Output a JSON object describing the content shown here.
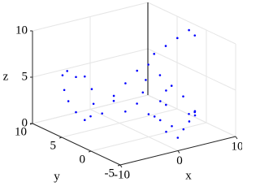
{
  "chart_data": {
    "type": "scatter3d",
    "xlabel": "x",
    "ylabel": "y",
    "zlabel": "z",
    "xlim": [
      -10,
      10
    ],
    "ylim": [
      -5,
      10
    ],
    "zlim": [
      0,
      10
    ],
    "xticks": [
      -10,
      0,
      10
    ],
    "yticks": [
      -5,
      0,
      5,
      10
    ],
    "zticks": [
      0,
      5,
      10
    ],
    "grid": true,
    "series": [
      {
        "color": "#0000ff",
        "x": [
          -5,
          -5,
          -5,
          -5,
          -5,
          -5,
          -5,
          -5,
          -5,
          -5,
          -5,
          -3,
          -1,
          0,
          0,
          0,
          -1,
          -2,
          -3,
          -2,
          1,
          2,
          3,
          4,
          5,
          6,
          7,
          8,
          9,
          9,
          7,
          6,
          5,
          4,
          5,
          6,
          7,
          8,
          8.5,
          3,
          2,
          1,
          0,
          1,
          2
        ],
        "y": [
          9.5,
          9.8,
          9,
          7.5,
          6,
          4.8,
          4.5,
          5,
          6,
          7.5,
          8.8,
          5,
          3,
          2,
          1,
          0.5,
          1,
          2,
          3,
          4,
          1,
          0,
          -1,
          -2,
          -2,
          -2,
          -1,
          0,
          1,
          2,
          1,
          2,
          3,
          4,
          4,
          3,
          2,
          1,
          0.5,
          0,
          -1,
          -1,
          -1,
          -2,
          -3
        ],
        "z": [
          3,
          4.5,
          5.2,
          5,
          5.5,
          4.5,
          3,
          1.5,
          0.8,
          1.2,
          2,
          1.5,
          2,
          3,
          4.5,
          6,
          7,
          5.5,
          4,
          3,
          2,
          1.5,
          1,
          0.8,
          1.5,
          2,
          2,
          1.5,
          1,
          0.5,
          3,
          4,
          5,
          6,
          7,
          8,
          9,
          10,
          9.5,
          3,
          5,
          4,
          2.5,
          1,
          0.5
        ]
      }
    ]
  }
}
